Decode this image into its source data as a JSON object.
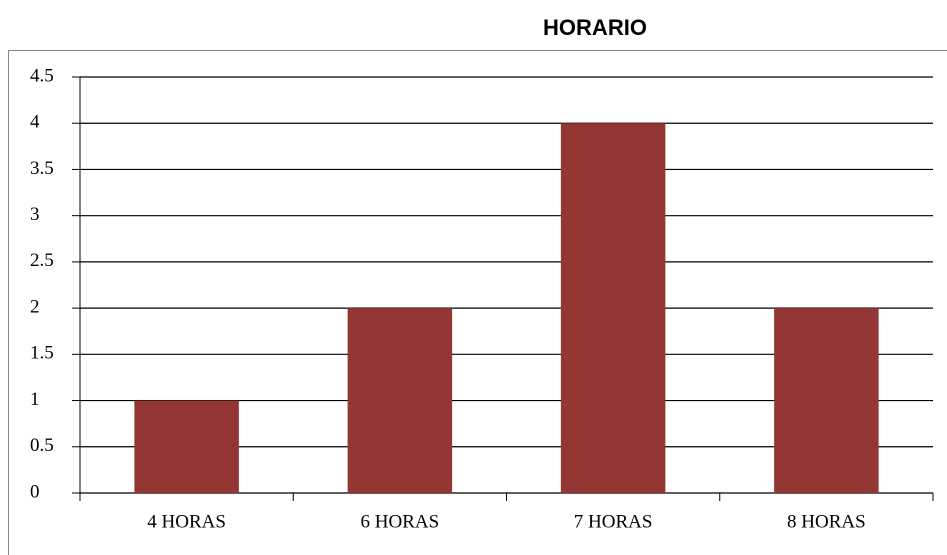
{
  "chart_data": {
    "type": "bar",
    "title": "HORARIO",
    "categories": [
      "4 HORAS",
      "6 HORAS",
      "7 HORAS",
      "8 HORAS"
    ],
    "values": [
      1,
      2,
      4,
      2
    ],
    "color": "#943634",
    "ylim": [
      0,
      4.5
    ],
    "yticks": [
      0,
      0.5,
      1,
      1.5,
      2,
      2.5,
      3,
      3.5,
      4,
      4.5
    ],
    "grid": true
  }
}
